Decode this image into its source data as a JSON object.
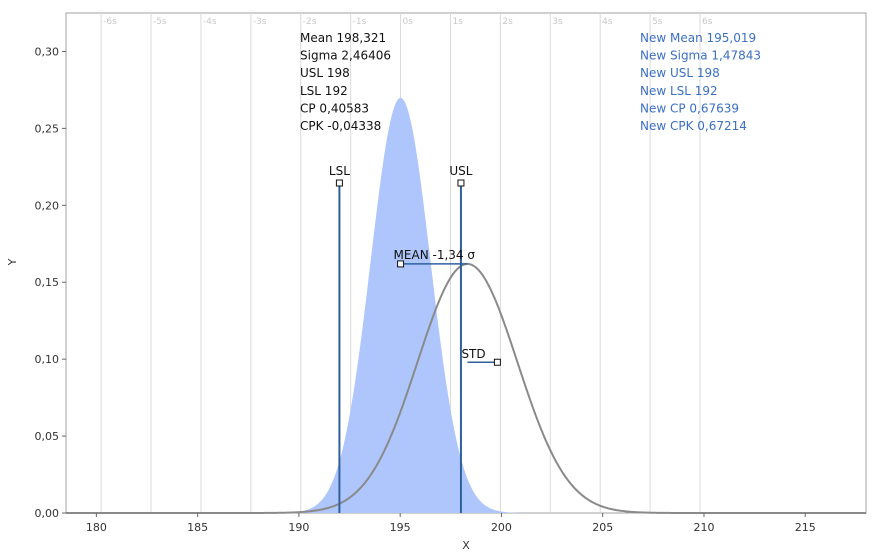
{
  "chart_data": {
    "type": "area",
    "xlabel": "X",
    "ylabel": "Y",
    "xlim": [
      178.5,
      218
    ],
    "ylim": [
      0,
      0.325
    ],
    "x_ticks": [
      "180",
      "185",
      "190",
      "195",
      "200",
      "205",
      "210",
      "215"
    ],
    "x_tick_values": [
      180,
      185,
      190,
      195,
      200,
      205,
      210,
      215
    ],
    "y_ticks": [
      "0,00",
      "0,05",
      "0,10",
      "0,15",
      "0,20",
      "0,25",
      "0,30"
    ],
    "y_tick_values": [
      0,
      0.05,
      0.1,
      0.15,
      0.2,
      0.25,
      0.3
    ],
    "sigma_ticks": [
      "-6s",
      "-5s",
      "-4s",
      "-3s",
      "-2s",
      "-1s",
      "0s",
      "1s",
      "2s",
      "3s",
      "4s",
      "5s",
      "6s"
    ],
    "sigma_tick_values": [
      -6,
      -5,
      -4,
      -3,
      -2,
      -1,
      0,
      1,
      2,
      3,
      4,
      5,
      6
    ],
    "sigma_reference": {
      "mean": 195.019,
      "sigma": 2.46406
    },
    "series": [
      {
        "kind": "filled-density",
        "mean": 195.019,
        "sigma": 1.47843
      },
      {
        "kind": "density-curve",
        "mean": 198.321,
        "sigma": 2.46406
      }
    ],
    "limits": [
      {
        "label": "LSL",
        "x": 192
      },
      {
        "label": "USL",
        "x": 198
      }
    ],
    "mean_handle": {
      "label": "MEAN -1,34 σ",
      "x_start": 195.019,
      "x_end": 198.321
    },
    "std_handle": {
      "label": "STD",
      "x_start": 198.321,
      "x_end": 199.8
    },
    "stats_current": [
      "Mean 198,321",
      "Sigma 2,46406",
      "USL 198",
      "LSL 192",
      "CP 0,40583",
      "CPK -0,04338"
    ],
    "stats_new": [
      "New Mean 195,019",
      "New Sigma 1,47843",
      "New USL 198",
      "New LSL 192",
      "New CP 0,67639",
      "New CPK 0,67214"
    ],
    "grid": true,
    "colors": {
      "fill": "#aec6fb",
      "curve": "#8a8a8a",
      "limit_line": "#2f5f9e",
      "grid": "#d9d9d9",
      "new_stats": "#3b6fc4"
    }
  }
}
